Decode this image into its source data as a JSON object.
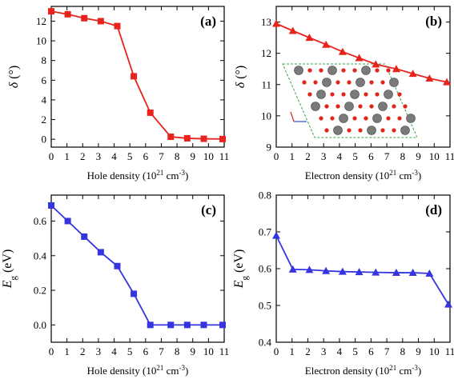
{
  "chart_data": [
    {
      "id": "a",
      "type": "line",
      "panel_label": "(a)",
      "xlabel": "Hole density (10^21 cm^-3)",
      "ylabel": "δ (°)",
      "xlim": [
        0,
        11
      ],
      "ylim": [
        -0.8,
        13.5
      ],
      "xticks": [
        0,
        1,
        2,
        3,
        4,
        5,
        6,
        7,
        8,
        9,
        10,
        11
      ],
      "yticks": [
        0,
        2,
        4,
        6,
        8,
        10,
        12
      ],
      "color": "#e8231d",
      "marker": "square",
      "grid": false,
      "series": [
        {
          "x": [
            0,
            1.05,
            2.1,
            3.15,
            4.2,
            5.25,
            6.3,
            7.6,
            8.65,
            9.7,
            10.9
          ],
          "y": [
            13.0,
            12.7,
            12.3,
            12.0,
            11.5,
            6.4,
            2.7,
            0.25,
            0.1,
            0.05,
            0.02
          ]
        }
      ]
    },
    {
      "id": "b",
      "type": "line",
      "panel_label": "(b)",
      "xlabel": "Electron density (10^21 cm^-3)",
      "ylabel": "δ (°)",
      "xlim": [
        0,
        11
      ],
      "ylim": [
        9,
        13.5
      ],
      "xticks": [
        0,
        1,
        2,
        3,
        4,
        5,
        6,
        7,
        8,
        9,
        10,
        11
      ],
      "yticks": [
        9,
        10,
        11,
        12,
        13
      ],
      "color": "#e8231d",
      "marker": "triangle",
      "grid": false,
      "series": [
        {
          "x": [
            0,
            1.05,
            2.1,
            3.15,
            4.2,
            5.25,
            6.3,
            7.6,
            8.65,
            9.7,
            10.8
          ],
          "y": [
            12.95,
            12.72,
            12.5,
            12.28,
            12.05,
            11.85,
            11.65,
            11.5,
            11.35,
            11.2,
            11.08
          ]
        }
      ],
      "inset": "crystal-structure"
    },
    {
      "id": "c",
      "type": "line",
      "panel_label": "(c)",
      "xlabel": "Hole density (10^21 cm^-3)",
      "ylabel": "E_g (eV)",
      "xlim": [
        0,
        11
      ],
      "ylim": [
        -0.1,
        0.75
      ],
      "xticks": [
        0,
        1,
        2,
        3,
        4,
        5,
        6,
        7,
        8,
        9,
        10,
        11
      ],
      "yticks": [
        0.0,
        0.2,
        0.4,
        0.6
      ],
      "ytick_labels": [
        "0.0",
        "0.2",
        "0.4",
        "0.6"
      ],
      "color": "#3535e0",
      "marker": "square",
      "grid": false,
      "series": [
        {
          "x": [
            0,
            1.05,
            2.1,
            3.15,
            4.2,
            5.25,
            6.3,
            7.6,
            8.65,
            9.7,
            10.9
          ],
          "y": [
            0.69,
            0.6,
            0.51,
            0.42,
            0.34,
            0.18,
            0.0,
            0.0,
            0.0,
            0.0,
            0.0
          ]
        }
      ]
    },
    {
      "id": "d",
      "type": "line",
      "panel_label": "(d)",
      "xlabel": "Electron density (10^21 cm^-3)",
      "ylabel": "E_g (eV)",
      "xlim": [
        0,
        11
      ],
      "ylim": [
        0.4,
        0.8
      ],
      "xticks": [
        0,
        1,
        2,
        3,
        4,
        5,
        6,
        7,
        8,
        9,
        10,
        11
      ],
      "yticks": [
        0.4,
        0.5,
        0.6,
        0.7,
        0.8
      ],
      "ytick_labels": [
        "0.4",
        "0.5",
        "0.6",
        "0.7",
        "0.8"
      ],
      "color": "#3535e0",
      "marker": "triangle",
      "grid": false,
      "series": [
        {
          "x": [
            0,
            1.05,
            2.1,
            3.15,
            4.2,
            5.25,
            6.3,
            7.6,
            8.65,
            9.7,
            10.9
          ],
          "y": [
            0.69,
            0.598,
            0.597,
            0.594,
            0.592,
            0.591,
            0.59,
            0.589,
            0.589,
            0.587,
            0.503
          ]
        }
      ]
    }
  ]
}
